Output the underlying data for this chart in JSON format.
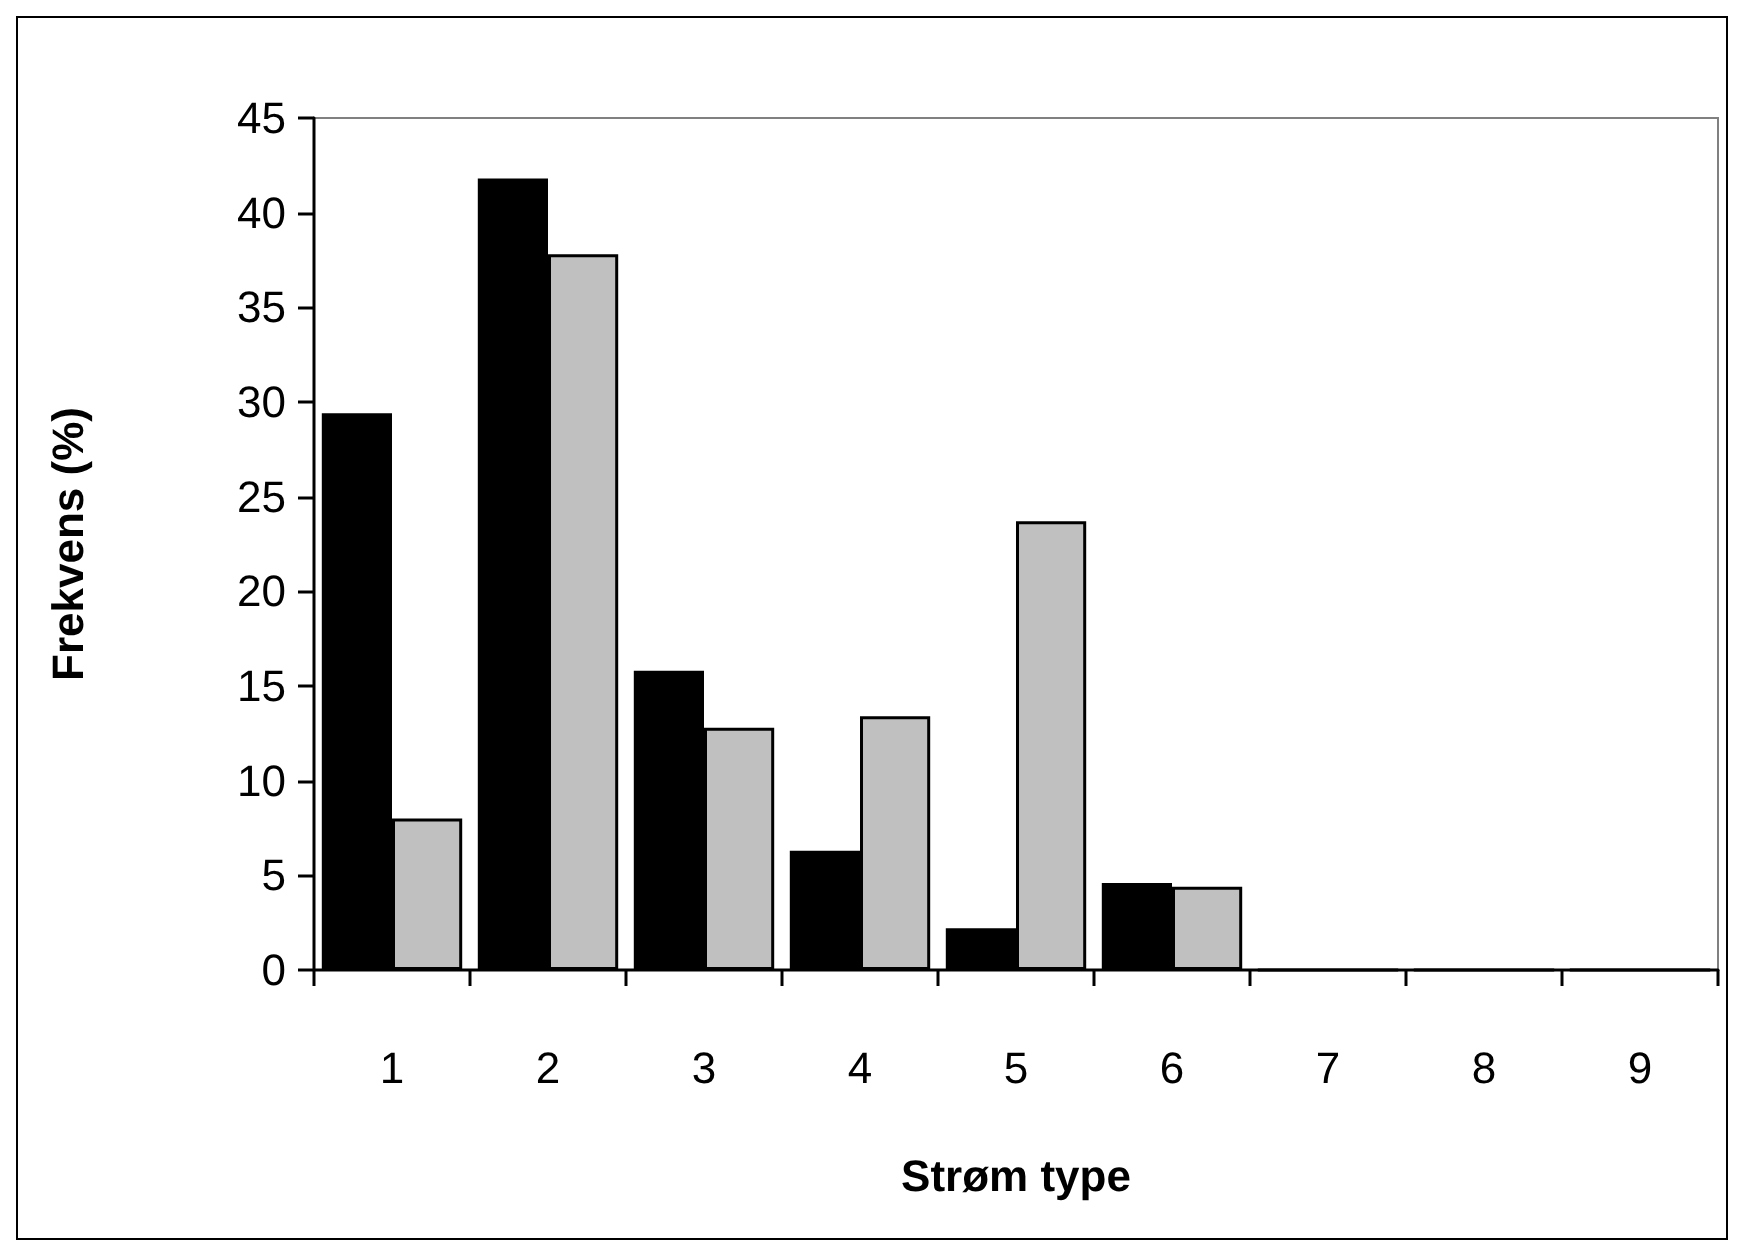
{
  "chart_data": {
    "type": "bar",
    "xlabel": "Strøm type",
    "ylabel": "Frekvens (%)",
    "categories": [
      "1",
      "2",
      "3",
      "4",
      "5",
      "6",
      "7",
      "8",
      "9"
    ],
    "series": [
      {
        "color": "#000000",
        "values": [
          29.4,
          41.8,
          15.8,
          6.3,
          2.2,
          4.6,
          0,
          0,
          0
        ]
      },
      {
        "color": "#c0c0c0",
        "values": [
          8.0,
          37.8,
          12.8,
          13.4,
          23.7,
          4.4,
          0,
          0,
          0
        ]
      }
    ],
    "ylim": [
      0,
      45
    ],
    "yticks": [
      0,
      5,
      10,
      15,
      20,
      25,
      30,
      35,
      40,
      45
    ],
    "grid": false
  }
}
